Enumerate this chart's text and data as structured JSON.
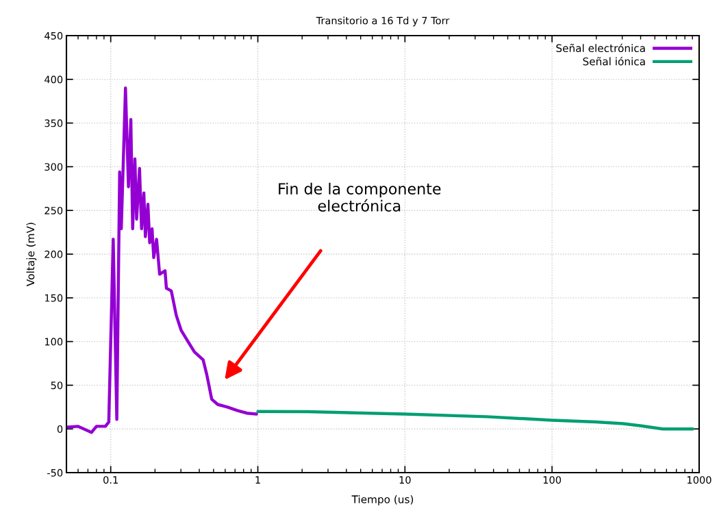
{
  "chart_data": {
    "type": "line",
    "title": "Transitorio a 16 Td y 7 Torr",
    "xlabel": "Tiempo (us)",
    "ylabel": "Voltaje (mV)",
    "log": "x",
    "xlim": [
      0.05,
      1000
    ],
    "xticks": [
      0.1,
      1,
      10,
      100,
      1000
    ],
    "ylim": [
      -50,
      450
    ],
    "yticks": [
      -50,
      0,
      50,
      100,
      150,
      200,
      250,
      300,
      350,
      400,
      450
    ],
    "grid": true,
    "legend": "top right",
    "series": [
      {
        "name": "Señal electrónica",
        "color": "#9400d3",
        "x": [
          0.05,
          0.06,
          0.074,
          0.08,
          0.092,
          0.097,
          0.104,
          0.11,
          0.115,
          0.118,
          0.126,
          0.132,
          0.137,
          0.141,
          0.146,
          0.15,
          0.157,
          0.162,
          0.168,
          0.172,
          0.179,
          0.184,
          0.191,
          0.196,
          0.205,
          0.215,
          0.234,
          0.239,
          0.258,
          0.279,
          0.301,
          0.338,
          0.371,
          0.425,
          0.45,
          0.486,
          0.534,
          0.623,
          0.727,
          0.846,
          0.98
        ],
        "values": [
          2,
          3,
          -4,
          3,
          3,
          8,
          217,
          11,
          294,
          229,
          390,
          277,
          354,
          229,
          309,
          240,
          298,
          229,
          270,
          220,
          257,
          213,
          229,
          196,
          217,
          177,
          181,
          161,
          158,
          130,
          113,
          99,
          88,
          79,
          62,
          34,
          28,
          25,
          21,
          18,
          17
        ]
      },
      {
        "name": "Señal iónica",
        "color": "#009e73",
        "x": [
          1,
          2.18,
          10,
          36.3,
          100,
          199,
          305,
          405,
          565,
          906
        ],
        "values": [
          20,
          19.7,
          17,
          14,
          10,
          8,
          6,
          3.5,
          0,
          0
        ]
      }
    ],
    "annotations": [
      "Fin de la componente\nelectrónica"
    ]
  }
}
